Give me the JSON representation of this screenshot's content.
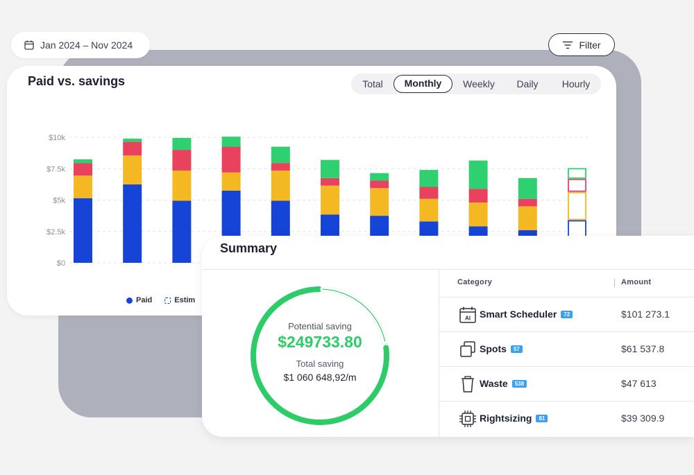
{
  "header": {
    "date_range": "Jan 2024 – Nov 2024",
    "filter_label": "Filter"
  },
  "chart_card": {
    "title": "Paid vs. savings",
    "tabs": [
      {
        "label": "Total",
        "active": false
      },
      {
        "label": "Monthly",
        "active": true
      },
      {
        "label": "Weekly",
        "active": false
      },
      {
        "label": "Daily",
        "active": false
      },
      {
        "label": "Hourly",
        "active": false
      }
    ],
    "legend": [
      {
        "label": "Paid",
        "color": "#1544d6"
      },
      {
        "label": "Estim",
        "color": "#1544d6"
      }
    ]
  },
  "chart_data": {
    "type": "bar",
    "stacked": true,
    "ylim": [
      0,
      10000
    ],
    "yticks": [
      0,
      2500,
      5000,
      7500,
      10000
    ],
    "ytick_labels": [
      "$0",
      "$2.5k",
      "$5k",
      "$7.5k",
      "$10k"
    ],
    "grid": true,
    "colors": {
      "blue": "#1544d6",
      "yellow": "#f3b822",
      "red": "#e8425f",
      "green": "#2fd070"
    },
    "bars": [
      {
        "blue": 5150,
        "yellow": 1800,
        "red": 1000,
        "green": 300,
        "estimated": false
      },
      {
        "blue": 6250,
        "yellow": 2300,
        "red": 1100,
        "green": 250,
        "estimated": false
      },
      {
        "blue": 4950,
        "yellow": 2400,
        "red": 1650,
        "green": 950,
        "estimated": false
      },
      {
        "blue": 5750,
        "yellow": 1450,
        "red": 2050,
        "green": 800,
        "estimated": false
      },
      {
        "blue": 4950,
        "yellow": 2400,
        "red": 600,
        "green": 1300,
        "estimated": false
      },
      {
        "blue": 3850,
        "yellow": 2300,
        "red": 600,
        "green": 1450,
        "estimated": false
      },
      {
        "blue": 3750,
        "yellow": 2200,
        "red": 600,
        "green": 600,
        "estimated": false
      },
      {
        "blue": 3300,
        "yellow": 1800,
        "red": 950,
        "green": 1350,
        "estimated": false
      },
      {
        "blue": 2900,
        "yellow": 1900,
        "red": 1100,
        "green": 2250,
        "estimated": false
      },
      {
        "blue": 2600,
        "yellow": 1900,
        "red": 600,
        "green": 1650,
        "estimated": false
      },
      {
        "blue": 3400,
        "yellow": 2250,
        "red": 1050,
        "green": 850,
        "estimated": true
      }
    ]
  },
  "summary": {
    "title": "Summary",
    "potential_label": "Potential saving",
    "potential_value": "$249733.80",
    "total_label": "Total saving",
    "total_value": "$1 060 648,92/m",
    "ring_progress": 0.22,
    "ring_color": "#2ecc68",
    "table": {
      "col_category": "Category",
      "col_amount": "Amount",
      "rows": [
        {
          "name": "Smart Scheduler",
          "badge": "72",
          "amount": "$101 273.1",
          "icon": "ai-calendar-icon"
        },
        {
          "name": "Spots",
          "badge": "57",
          "amount": "$61 537.8",
          "icon": "copy-squares-icon"
        },
        {
          "name": "Waste",
          "badge": "538",
          "amount": "$47 613",
          "icon": "trash-icon"
        },
        {
          "name": "Rightsizing",
          "badge": "81",
          "amount": "$39 309.9",
          "icon": "chip-icon"
        }
      ]
    }
  }
}
